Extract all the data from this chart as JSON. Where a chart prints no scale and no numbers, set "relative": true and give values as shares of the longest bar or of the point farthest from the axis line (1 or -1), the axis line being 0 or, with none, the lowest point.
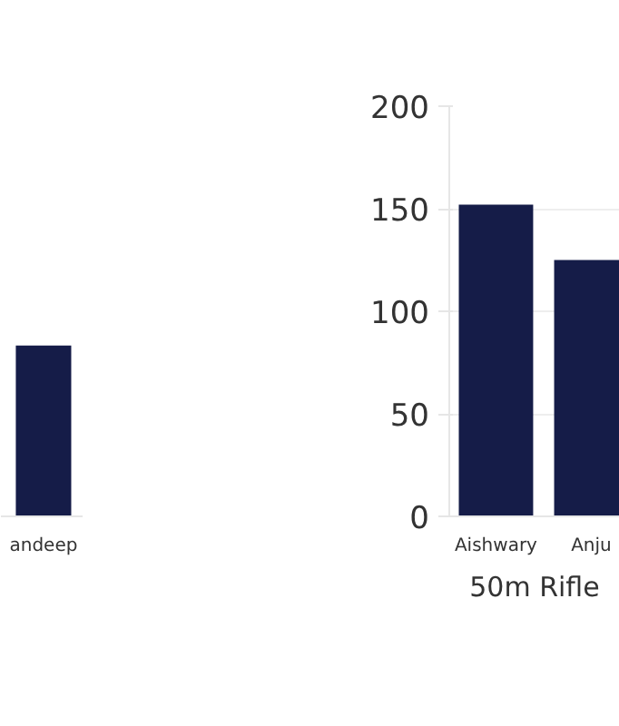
{
  "chart_data": [
    {
      "type": "bar",
      "relative": true,
      "categories": [
        "andeep"
      ],
      "values": [
        1
      ],
      "color": "#151c48",
      "grid": false
    },
    {
      "type": "bar",
      "categories": [
        "Aishwary",
        "Anju"
      ],
      "values": [
        152,
        125
      ],
      "color": "#151c48",
      "xlabel": "50m Rifle",
      "ylim": [
        0,
        200
      ],
      "yticks": [
        0,
        50,
        100,
        150,
        200
      ],
      "grid": "y"
    }
  ]
}
